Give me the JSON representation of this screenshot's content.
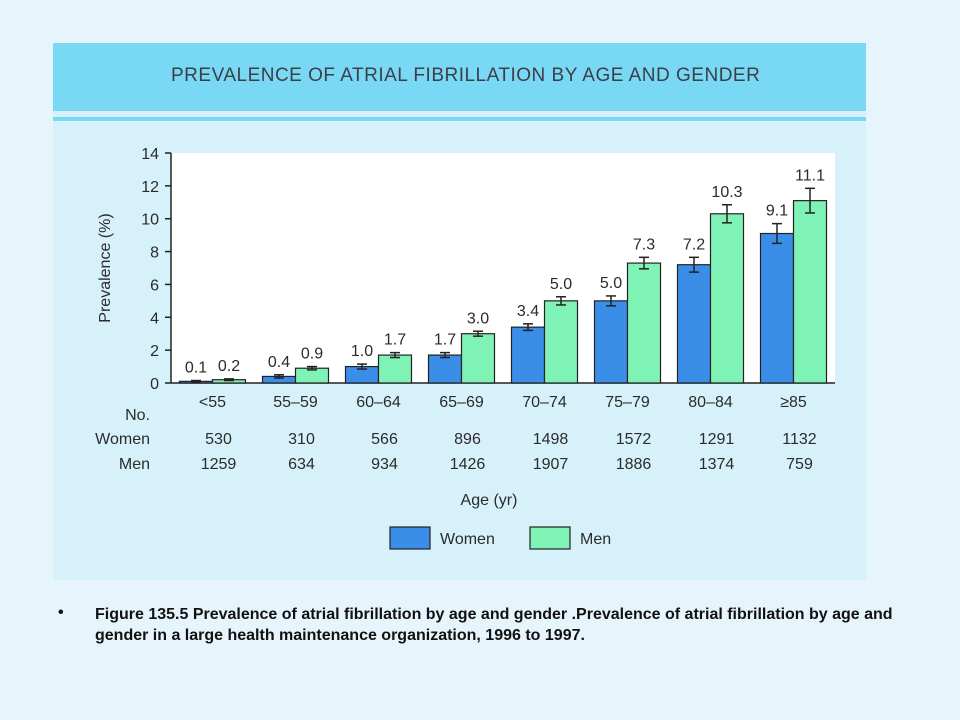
{
  "figure": {
    "title": "PREVALENCE OF ATRIAL FIBRILLATION BY AGE AND GENDER"
  },
  "chart_data": {
    "type": "bar",
    "title": "PREVALENCE OF ATRIAL FIBRILLATION BY AGE AND GENDER",
    "xlabel": "Age (yr)",
    "ylabel": "Prevalence (%)",
    "ylim": [
      0,
      14
    ],
    "yticks": [
      0,
      2,
      4,
      6,
      8,
      10,
      12,
      14
    ],
    "categories": [
      "<55",
      "55–59",
      "60–64",
      "65–69",
      "70–74",
      "75–79",
      "80–84",
      "≥85"
    ],
    "series": [
      {
        "name": "Women",
        "color": "#3a8ee8",
        "values": [
          0.1,
          0.4,
          1.0,
          1.7,
          3.4,
          5.0,
          7.2,
          9.1
        ],
        "labels": [
          "0.1",
          "0.4",
          "1.0",
          "1.7",
          "3.4",
          "5.0",
          "7.2",
          "9.1"
        ],
        "error": [
          0.05,
          0.1,
          0.15,
          0.15,
          0.2,
          0.3,
          0.45,
          0.6
        ]
      },
      {
        "name": "Men",
        "color": "#7ff3b5",
        "values": [
          0.2,
          0.9,
          1.7,
          3.0,
          5.0,
          7.3,
          10.3,
          11.1
        ],
        "labels": [
          "0.2",
          "0.9",
          "1.7",
          "3.0",
          "5.0",
          "7.3",
          "10.3",
          "11.1"
        ],
        "error": [
          0.05,
          0.1,
          0.15,
          0.15,
          0.25,
          0.35,
          0.55,
          0.75
        ]
      }
    ],
    "counts": {
      "header": "No.",
      "rows": [
        {
          "label": "Women",
          "values": [
            "530",
            "310",
            "566",
            "896",
            "1498",
            "1572",
            "1291",
            "1132"
          ]
        },
        {
          "label": "Men",
          "values": [
            "1259",
            "634",
            "934",
            "1426",
            "1907",
            "1886",
            "1374",
            "759"
          ]
        }
      ]
    },
    "legend": [
      "Women",
      "Men"
    ],
    "legend_position": "bottom",
    "grid": false
  },
  "caption": {
    "bullet": "•",
    "text": "Figure 135.5  Prevalence of atrial fibrillation by age and gender .Prevalence of atrial fibrillation by age and gender in a large health maintenance organization, 1996 to 1997."
  }
}
